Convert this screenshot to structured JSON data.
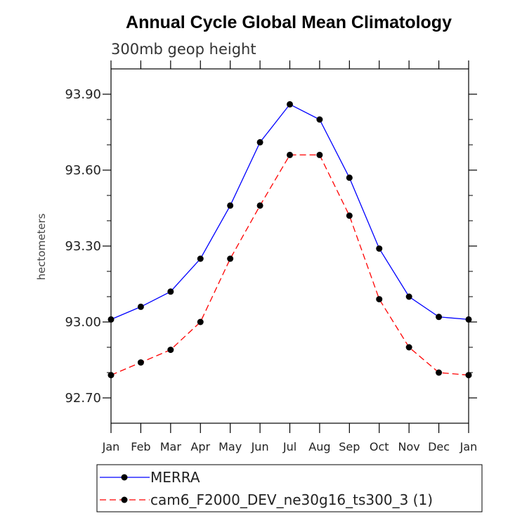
{
  "chart_data": {
    "type": "line",
    "title": "Annual Cycle Global Mean Climatology",
    "subtitle": "300mb geop height",
    "xlabel": "",
    "ylabel": "hectometers",
    "categories": [
      "Jan",
      "Feb",
      "Mar",
      "Apr",
      "May",
      "Jun",
      "Jul",
      "Aug",
      "Sep",
      "Oct",
      "Nov",
      "Dec",
      "Jan"
    ],
    "ylim": [
      92.6,
      94.0
    ],
    "yticks": [
      92.7,
      93.0,
      93.3,
      93.6,
      93.9
    ],
    "ytick_labels": [
      "92.70",
      "93.00",
      "93.30",
      "93.60",
      "93.90"
    ],
    "grid": false,
    "legend_position": "bottom",
    "series": [
      {
        "name": "MERRA",
        "color": "#0000ff",
        "dash": "solid",
        "marker": "circle",
        "values": [
          93.01,
          93.06,
          93.12,
          93.25,
          93.46,
          93.71,
          93.86,
          93.8,
          93.57,
          93.29,
          93.1,
          93.02,
          93.01
        ]
      },
      {
        "name": "cam6_F2000_DEV_ne30g16_ts300_3 (1)",
        "color": "#ff0000",
        "dash": "dashed",
        "marker": "circle",
        "values": [
          92.79,
          92.84,
          92.89,
          93.0,
          93.25,
          93.46,
          93.66,
          93.66,
          93.42,
          93.09,
          92.9,
          92.8,
          92.79
        ]
      }
    ]
  }
}
